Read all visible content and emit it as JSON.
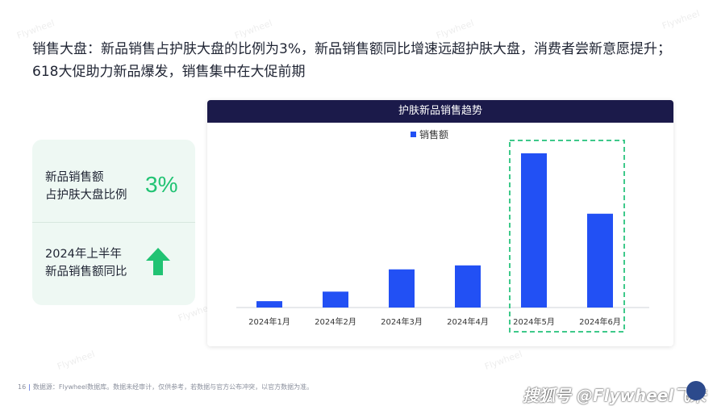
{
  "headline": {
    "line1": "销售大盘：新品销售占护肤大盘的比例为3%，新品销售额同比增速远超护肤大盘，消费者尝新意愿提升；",
    "line2": "618大促助力新品爆发，销售集中在大促前期"
  },
  "watermark": "Flywheel",
  "card": {
    "metric1_label_line1": "新品销售额",
    "metric1_label_line2": "占护肤大盘比例",
    "metric1_value": "3%",
    "metric2_label_line1": "2024年上半年",
    "metric2_label_line2": "新品销售额同比",
    "metric2_icon": "up-arrow-icon",
    "accent_color": "#21c373"
  },
  "chart_data": {
    "type": "bar",
    "title": "护肤新品销售趋势",
    "categories": [
      "2024年1月",
      "2024年2月",
      "2024年3月",
      "2024年4月",
      "2024年5月",
      "2024年6月"
    ],
    "series": [
      {
        "name": "销售额",
        "values": [
          4,
          10,
          24,
          26.5,
          97,
          59
        ],
        "color": "#2250f4"
      }
    ],
    "ylim": [
      0,
      100
    ],
    "grid": false,
    "legend_position": "top-center",
    "highlight": {
      "categories": [
        "2024年5月",
        "2024年6月"
      ],
      "style": "dashed-box",
      "color": "#3ec98a"
    }
  },
  "footer": {
    "page_number": "16",
    "source": "数据源：Flywheel数据库。数据未经审计，仅供参考，若数据与官方公布冲突，以官方数据为准。"
  },
  "brand": {
    "label": "搜狐号 @Flywheel飞未"
  }
}
